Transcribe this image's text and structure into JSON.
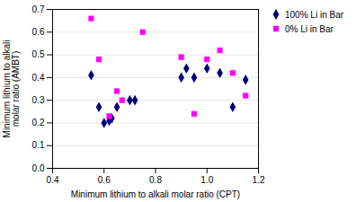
{
  "chart_data": {
    "type": "scatter",
    "xlabel": "Minimum lithium to alkali molar ratio (CPT)",
    "ylabel": "Minimum lithium to alkali\nmolar ratio (AMBT)",
    "xlim": [
      0.4,
      1.2
    ],
    "ylim": [
      0,
      0.7
    ],
    "xticks": [
      0.4,
      0.6,
      0.8,
      {
        "value": 1.0,
        "label": "1.0"
      },
      1.2
    ],
    "yticks": [
      {
        "value": 0,
        "label": "0.0"
      },
      0.1,
      0.2,
      0.3,
      0.4,
      0.5,
      0.6,
      0.7
    ],
    "grid": "y",
    "legend": "right",
    "series": [
      {
        "name": "100% Li in Bar",
        "color": "#000080",
        "marker": "diamond",
        "x": [
          0.55,
          0.58,
          0.6,
          0.62,
          0.63,
          0.65,
          0.7,
          0.72,
          0.9,
          0.92,
          0.95,
          1.0,
          1.05,
          1.1,
          1.15
        ],
        "values": [
          0.41,
          0.27,
          0.2,
          0.21,
          0.22,
          0.27,
          0.3,
          0.3,
          0.4,
          0.44,
          0.4,
          0.44,
          0.42,
          0.27,
          0.39
        ]
      },
      {
        "name": "0% Li in Bar",
        "color": "#FF00FF",
        "marker": "square",
        "x": [
          0.55,
          0.58,
          0.62,
          0.65,
          0.67,
          0.75,
          0.9,
          0.95,
          1.0,
          1.05,
          1.1,
          1.15
        ],
        "values": [
          0.66,
          0.48,
          0.23,
          0.34,
          0.3,
          0.6,
          0.49,
          0.24,
          0.48,
          0.52,
          0.42,
          0.32
        ]
      }
    ]
  }
}
